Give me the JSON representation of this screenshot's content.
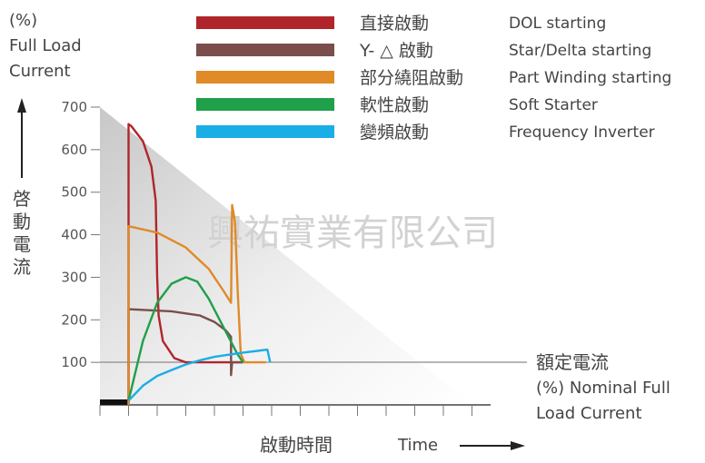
{
  "chart_data": {
    "type": "line",
    "y_axis_title": [
      "(%)",
      "Full Load",
      "Current"
    ],
    "y_axis_title_cjk": [
      "啓",
      "動",
      "電",
      "流"
    ],
    "y_ticks": [
      100,
      200,
      300,
      400,
      500,
      600,
      700
    ],
    "ylim": [
      0,
      700
    ],
    "x_label_cjk": "啟動時間",
    "x_label": "Time",
    "watermark": "興祐實業有限公司",
    "nominal": {
      "value": 100,
      "label_cjk": "額定電流",
      "label_en": [
        "(%) Nominal Full",
        "Load Current"
      ]
    },
    "series": [
      {
        "name": "直接啟動",
        "name_en": "DOL starting",
        "color": "#b0252a",
        "points": [
          [
            1,
            0
          ],
          [
            1,
            660
          ],
          [
            1.1,
            655
          ],
          [
            1.5,
            620
          ],
          [
            1.8,
            560
          ],
          [
            1.95,
            480
          ],
          [
            2,
            300
          ],
          [
            2.05,
            210
          ],
          [
            2.2,
            150
          ],
          [
            2.6,
            110
          ],
          [
            3,
            100
          ],
          [
            5,
            100
          ]
        ]
      },
      {
        "name": "Y- △ 啟動",
        "name_en": "Star/Delta starting",
        "color": "#7a4e4b",
        "points": [
          [
            1,
            0
          ],
          [
            1,
            225
          ],
          [
            2.5,
            220
          ],
          [
            3.5,
            210
          ],
          [
            4,
            195
          ],
          [
            4.4,
            175
          ],
          [
            4.58,
            160
          ],
          [
            4.58,
            70
          ],
          [
            4.62,
            100
          ],
          [
            5,
            100
          ]
        ]
      },
      {
        "name": "部分繞阻啟動",
        "name_en": "Part Winding starting",
        "color": "#e08a28",
        "points": [
          [
            1,
            0
          ],
          [
            1,
            420
          ],
          [
            2,
            405
          ],
          [
            3,
            370
          ],
          [
            3.8,
            320
          ],
          [
            4.3,
            270
          ],
          [
            4.58,
            240
          ],
          [
            4.62,
            470
          ],
          [
            4.72,
            430
          ],
          [
            4.82,
            260
          ],
          [
            4.92,
            120
          ],
          [
            5.05,
            100
          ],
          [
            5.8,
            100
          ]
        ]
      },
      {
        "name": "軟性啟動",
        "name_en": "Soft Starter",
        "color": "#1fa04a",
        "points": [
          [
            1,
            10
          ],
          [
            1.5,
            150
          ],
          [
            2,
            240
          ],
          [
            2.5,
            285
          ],
          [
            3,
            300
          ],
          [
            3.4,
            290
          ],
          [
            3.8,
            250
          ],
          [
            4.3,
            185
          ],
          [
            4.8,
            120
          ],
          [
            5,
            100
          ]
        ]
      },
      {
        "name": "變頻啟動",
        "name_en": "Frequency Inverter",
        "color": "#1aaee6",
        "points": [
          [
            1,
            10
          ],
          [
            1.5,
            45
          ],
          [
            2,
            68
          ],
          [
            2.5,
            82
          ],
          [
            3,
            95
          ],
          [
            3.5,
            105
          ],
          [
            4,
            113
          ],
          [
            4.5,
            118
          ],
          [
            5,
            123
          ],
          [
            5.5,
            127
          ],
          [
            5.85,
            130
          ],
          [
            5.95,
            100
          ]
        ]
      }
    ]
  }
}
